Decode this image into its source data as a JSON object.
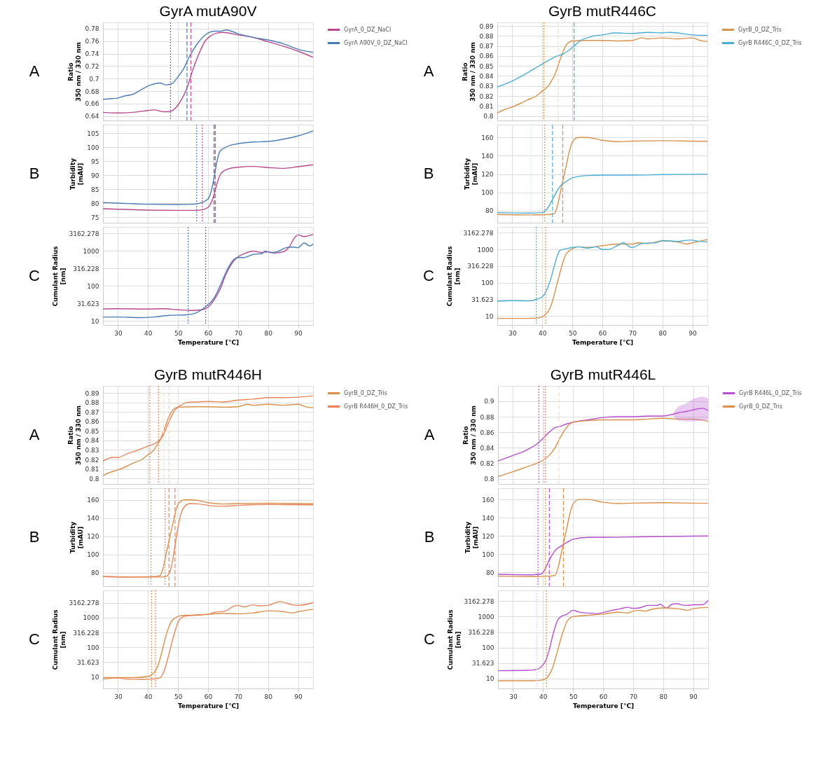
{
  "chart_data": [
    {
      "type": "line",
      "title": "GyrA mutA90V",
      "annotations": [
        "A"
      ],
      "ylabel": "Ratio\n350 nm / 330 nm",
      "xlim": [
        25,
        95
      ],
      "xticks": [
        30,
        40,
        50,
        60,
        70,
        80,
        90
      ],
      "ylim": [
        0.633,
        0.79
      ],
      "yticks": [
        0.64,
        0.66,
        0.68,
        0.7,
        0.72,
        0.74,
        0.76,
        0.78
      ],
      "grid": true,
      "legend": "right",
      "tick_labels": "y",
      "line_style": "solid",
      "series": [
        {
          "name": "GyrA_0_DZ_NaCl",
          "color": "#b8478e",
          "x": [
            25,
            30,
            35,
            40,
            42,
            45,
            47,
            49,
            51,
            53,
            55,
            57,
            59,
            61,
            63,
            65,
            70,
            75,
            80,
            85,
            90,
            95
          ],
          "values": [
            0.646,
            0.645,
            0.646,
            0.649,
            0.65,
            0.647,
            0.647,
            0.652,
            0.665,
            0.685,
            0.715,
            0.74,
            0.76,
            0.769,
            0.773,
            0.774,
            0.77,
            0.766,
            0.759,
            0.752,
            0.744,
            0.734
          ]
        },
        {
          "name": "GyrA A90V_0_DZ_NaCl",
          "color": "#4a7db5",
          "x": [
            25,
            28,
            30,
            32,
            35,
            38,
            41,
            44,
            46,
            48,
            50,
            52,
            54,
            56,
            58,
            60,
            62,
            64,
            66,
            70,
            75,
            80,
            85,
            90,
            95
          ],
          "values": [
            0.667,
            0.668,
            0.669,
            0.672,
            0.675,
            0.683,
            0.69,
            0.693,
            0.69,
            0.692,
            0.703,
            0.717,
            0.737,
            0.753,
            0.765,
            0.773,
            0.776,
            0.776,
            0.778,
            0.772,
            0.766,
            0.762,
            0.756,
            0.747,
            0.742
          ]
        }
      ],
      "ref_lines": [
        {
          "axis": "x",
          "value": 47.5,
          "color": "#b8478e",
          "line_style": "dotted"
        },
        {
          "axis": "x",
          "value": 53,
          "color": "#4a7db5",
          "line_style": "dashed"
        },
        {
          "axis": "x",
          "value": 54.3,
          "color": "#b8478e",
          "line_style": "dashed"
        }
      ]
    },
    {
      "type": "line",
      "annotations": [
        "B"
      ],
      "ylabel": "Turbidity\n[mAU]",
      "xlim": [
        25,
        95
      ],
      "xticks": [
        30,
        40,
        50,
        60,
        70,
        80,
        90
      ],
      "ylim": [
        73,
        108
      ],
      "yticks": [
        75,
        80,
        85,
        90,
        95,
        100,
        105
      ],
      "grid": true,
      "tick_labels": "y",
      "line_style": "solid",
      "series": [
        {
          "color": "#b8478e",
          "x": [
            25,
            30,
            40,
            50,
            56,
            58,
            60,
            61,
            62,
            63,
            64,
            65,
            67,
            70,
            75,
            80,
            85,
            90,
            95
          ],
          "values": [
            78,
            77.8,
            77.5,
            77.4,
            77.4,
            77.6,
            78.5,
            80,
            83,
            87,
            90,
            91.3,
            92.3,
            92.8,
            93.1,
            92.7,
            92.4,
            93,
            93.7
          ]
        },
        {
          "color": "#4a7db5",
          "x": [
            25,
            30,
            40,
            50,
            55,
            58,
            60,
            61,
            62,
            63,
            64,
            66,
            70,
            75,
            80,
            85,
            90,
            95
          ],
          "values": [
            80.2,
            80,
            79.6,
            79.5,
            79.6,
            80.2,
            81.5,
            84,
            89,
            95,
            98.5,
            100,
            101.2,
            101.8,
            102,
            102.8,
            104,
            105.8
          ]
        }
      ],
      "ref_lines": [
        {
          "axis": "x",
          "value": 56.2,
          "color": "#4a7db5",
          "line_style": "dotted"
        },
        {
          "axis": "x",
          "value": 58.1,
          "color": "#b8478e",
          "line_style": "dotted"
        },
        {
          "axis": "x",
          "value": 62,
          "color": "#4a7db5",
          "line_style": "dashed"
        },
        {
          "axis": "x",
          "value": 62.4,
          "color": "#b8478e",
          "line_style": "dashed"
        }
      ]
    },
    {
      "type": "line",
      "annotations": [
        "C"
      ],
      "ylabel": "Cumulant Radius\n[nm]",
      "xlabel": "Temperature [°C]",
      "xlim": [
        25,
        95
      ],
      "xticks": [
        30,
        40,
        50,
        60,
        70,
        80,
        90
      ],
      "ylim": [
        7.7,
        4900
      ],
      "yticks": [
        10,
        31.623,
        100,
        316.228,
        1000,
        3162.278
      ],
      "log": "y",
      "grid": true,
      "line_style": "solid",
      "series": [
        {
          "color": "#b8478e",
          "x": [
            25,
            30,
            40,
            45,
            50,
            55,
            58,
            60,
            62,
            64,
            66,
            68,
            70,
            73,
            75,
            78,
            80,
            82,
            85,
            87,
            89,
            90,
            92,
            95
          ],
          "values": [
            22,
            22.5,
            22,
            22.5,
            21,
            20,
            21,
            25,
            40,
            80,
            220,
            450,
            680,
            900,
            1000,
            900,
            950,
            880,
            950,
            1300,
            2500,
            2900,
            2600,
            3000
          ]
        },
        {
          "color": "#4a7db5",
          "x": [
            25,
            30,
            37,
            42,
            47,
            53,
            56,
            59,
            62,
            64,
            66,
            68,
            70,
            72,
            75,
            78,
            79,
            81,
            83,
            86,
            88,
            90,
            92,
            94,
            95
          ],
          "values": [
            13,
            13,
            12.5,
            13,
            14.5,
            15,
            17,
            25,
            45,
            100,
            250,
            500,
            650,
            650,
            800,
            850,
            1000,
            900,
            950,
            1250,
            1300,
            1250,
            1700,
            1400,
            1600
          ]
        }
      ],
      "ref_lines": [
        {
          "axis": "x",
          "value": 53.4,
          "color": "#4a7db5",
          "line_style": "dotted"
        },
        {
          "axis": "x",
          "value": 59.2,
          "color": "#b8478e",
          "line_style": "dotted"
        }
      ]
    },
    {
      "type": "line",
      "title": "GyrB mutR446C",
      "annotations": [
        "A"
      ],
      "ylabel": "Ratio\n350 nm / 330 nm",
      "xlim": [
        25,
        95
      ],
      "xticks": [
        30,
        40,
        50,
        60,
        70,
        80,
        90
      ],
      "ylim": [
        0.7955,
        0.8935
      ],
      "yticks": [
        0.8,
        0.81,
        0.82,
        0.83,
        0.84,
        0.85,
        0.86,
        0.87,
        0.88,
        0.89
      ],
      "grid": true,
      "legend": "right",
      "tick_labels": "y",
      "line_style": "solid",
      "series": [
        {
          "name": "GyrB_0_DZ_Tris",
          "color": "#d9904a",
          "x": [
            25,
            27,
            30,
            33,
            35,
            38,
            40,
            42,
            43,
            44,
            45,
            46,
            47,
            48,
            49,
            50,
            55,
            60,
            65,
            70,
            73,
            75,
            80,
            85,
            90,
            93,
            95
          ],
          "values": [
            0.803,
            0.806,
            0.809,
            0.813,
            0.816,
            0.82,
            0.825,
            0.83,
            0.835,
            0.84,
            0.848,
            0.857,
            0.865,
            0.871,
            0.874,
            0.875,
            0.8755,
            0.8755,
            0.875,
            0.8755,
            0.878,
            0.877,
            0.878,
            0.877,
            0.878,
            0.875,
            0.8745
          ]
        },
        {
          "name": "GyrB R446C_0_DZ_Tris",
          "color": "#4aaed4",
          "x": [
            25,
            30,
            35,
            40,
            45,
            47,
            49,
            51,
            53,
            55,
            57,
            60,
            64,
            70,
            75,
            80,
            82,
            85,
            90,
            95
          ],
          "values": [
            0.829,
            0.835,
            0.843,
            0.852,
            0.86,
            0.862,
            0.866,
            0.871,
            0.876,
            0.878,
            0.88,
            0.881,
            0.883,
            0.8825,
            0.8835,
            0.883,
            0.8835,
            0.883,
            0.881,
            0.8805
          ]
        }
      ],
      "ref_lines": [
        {
          "axis": "x",
          "value": 40.5,
          "color": "#d9904a",
          "line_style": "dotted"
        },
        {
          "axis": "x",
          "value": 45.3,
          "color": "#f5dcc5",
          "line_style": "dashed"
        },
        {
          "axis": "x",
          "value": 50.6,
          "color": "#4aaed4",
          "line_style": "dashed"
        }
      ]
    },
    {
      "type": "line",
      "annotations": [
        "B"
      ],
      "ylabel": "Turbidity\n[mAU]",
      "xlim": [
        25,
        95
      ],
      "xticks": [
        30,
        40,
        50,
        60,
        70,
        80,
        90
      ],
      "ylim": [
        67,
        174
      ],
      "yticks": [
        80,
        100,
        120,
        140,
        160
      ],
      "grid": true,
      "tick_labels": "y",
      "line_style": "solid",
      "series": [
        {
          "color": "#d9904a",
          "x": [
            25,
            35,
            42,
            44,
            45,
            46,
            47,
            48,
            49,
            50,
            52,
            55,
            60,
            65,
            70,
            80,
            90,
            95
          ],
          "values": [
            76,
            75.5,
            76,
            77,
            85,
            100,
            115,
            130,
            145,
            155,
            160,
            160,
            157,
            155.5,
            156,
            156.5,
            156,
            155.8
          ]
        },
        {
          "color": "#4aaed4",
          "x": [
            25,
            35,
            40,
            41,
            42,
            43,
            44,
            45,
            46,
            48,
            50,
            55,
            60,
            70,
            80,
            95
          ],
          "values": [
            78,
            77.5,
            78,
            80,
            84,
            90,
            96,
            102,
            107,
            112,
            116,
            118.5,
            119,
            119,
            119.5,
            120
          ]
        }
      ],
      "ref_lines": [
        {
          "axis": "x",
          "value": 36.2,
          "color": "#cfe9f3",
          "line_style": "dotted"
        },
        {
          "axis": "x",
          "value": 40.8,
          "color": "#d9904a",
          "line_style": "dotted"
        },
        {
          "axis": "x",
          "value": 43.4,
          "color": "#4aaed4",
          "line_style": "dashed"
        },
        {
          "axis": "x",
          "value": 46.8,
          "color": "#d9904a",
          "line_style": "dashed"
        }
      ]
    },
    {
      "type": "line",
      "annotations": [
        "C"
      ],
      "ylabel": "Cumulant Radius\n[nm]",
      "xlabel": "Temperature [°C]",
      "xlim": [
        25,
        95
      ],
      "xticks": [
        30,
        40,
        50,
        60,
        70,
        80,
        90
      ],
      "ylim": [
        5.4,
        4750
      ],
      "yticks": [
        10,
        31.623,
        100,
        316.228,
        1000,
        3162.278
      ],
      "log": "y",
      "grid": true,
      "line_style": "solid",
      "series": [
        {
          "color": "#d9904a",
          "x": [
            25,
            35,
            38,
            40,
            41,
            42,
            43,
            44,
            45,
            46,
            47,
            48,
            50,
            52,
            55,
            60,
            65,
            70,
            72,
            75,
            80,
            85,
            88,
            90,
            95
          ],
          "values": [
            8.5,
            8.5,
            8.7,
            9.5,
            11,
            14,
            22,
            45,
            100,
            220,
            450,
            750,
            1050,
            1200,
            1150,
            1300,
            1450,
            1450,
            1600,
            1500,
            1800,
            1700,
            1450,
            1600,
            2000
          ]
        },
        {
          "color": "#4aaed4",
          "x": [
            25,
            30,
            36,
            38,
            40,
            41,
            42,
            43,
            44,
            45,
            46,
            48,
            50,
            52,
            55,
            58,
            60,
            62,
            65,
            67,
            69,
            70,
            73,
            75,
            78,
            80,
            85,
            89,
            90,
            92,
            95
          ],
          "values": [
            28,
            29,
            28.5,
            32,
            38,
            50,
            80,
            150,
            320,
            650,
            950,
            1050,
            1150,
            1200,
            1100,
            1200,
            1000,
            1000,
            1300,
            1600,
            1200,
            1150,
            1500,
            1550,
            1600,
            1850,
            1750,
            1900,
            1900,
            1750,
            1700
          ]
        }
      ],
      "ref_lines": [
        {
          "axis": "x",
          "value": 38,
          "color": "#4aaed4",
          "line_style": "dotted"
        },
        {
          "axis": "x",
          "value": 41.1,
          "color": "#d9904a",
          "line_style": "dotted"
        }
      ]
    },
    {
      "type": "line",
      "title": "GyrB mutR446H",
      "annotations": [
        "A"
      ],
      "ylabel": "Ratio\n350 nm / 330 nm",
      "xlim": [
        25,
        95
      ],
      "xticks": [
        30,
        40,
        50,
        60,
        70,
        80,
        90
      ],
      "ylim": [
        0.7942,
        0.8974
      ],
      "yticks": [
        0.8,
        0.81,
        0.82,
        0.83,
        0.84,
        0.85,
        0.86,
        0.87,
        0.88,
        0.89
      ],
      "grid": true,
      "legend": "right",
      "tick_labels": "y",
      "line_style": "solid",
      "series": [
        {
          "name": "GyrB_0_DZ_Tris",
          "color": "#d9904a",
          "x": [
            25,
            27,
            30,
            33,
            35,
            38,
            40,
            42,
            43,
            44,
            45,
            46,
            47,
            48,
            49,
            50,
            55,
            60,
            65,
            70,
            73,
            75,
            80,
            85,
            90,
            93,
            95
          ],
          "values": [
            0.803,
            0.806,
            0.809,
            0.813,
            0.816,
            0.82,
            0.825,
            0.83,
            0.835,
            0.84,
            0.848,
            0.857,
            0.865,
            0.871,
            0.874,
            0.875,
            0.8755,
            0.8755,
            0.875,
            0.8755,
            0.878,
            0.877,
            0.878,
            0.877,
            0.878,
            0.875,
            0.8745
          ]
        },
        {
          "name": "GyrB R446H_0_DZ_Tris",
          "color": "#e8845a",
          "x": [
            25,
            28,
            30,
            33,
            36,
            40,
            43,
            45,
            47,
            49,
            51,
            53,
            56,
            60,
            65,
            70,
            75,
            80,
            85,
            90,
            95
          ],
          "values": [
            0.818,
            0.822,
            0.822,
            0.826,
            0.829,
            0.834,
            0.838,
            0.845,
            0.86,
            0.872,
            0.877,
            0.88,
            0.8805,
            0.881,
            0.8805,
            0.8825,
            0.8835,
            0.885,
            0.885,
            0.8855,
            0.887
          ]
        }
      ],
      "ref_lines": [
        {
          "axis": "x",
          "value": 40.6,
          "color": "#e8845a",
          "line_style": "dotted"
        },
        {
          "axis": "x",
          "value": 43.5,
          "color": "#e8845a",
          "line_style": "dotted"
        },
        {
          "axis": "x",
          "value": 45.2,
          "color": "#f6e3cf",
          "line_style": "dashed"
        },
        {
          "axis": "x",
          "value": 47,
          "color": "#f6d3c3",
          "line_style": "dashed"
        }
      ]
    },
    {
      "type": "line",
      "annotations": [
        "B"
      ],
      "ylabel": "Turbidity\n[mAU]",
      "xlim": [
        25,
        95
      ],
      "xticks": [
        30,
        40,
        50,
        60,
        70,
        80,
        90
      ],
      "ylim": [
        65.4,
        172.9
      ],
      "yticks": [
        80,
        100,
        120,
        140,
        160
      ],
      "grid": true,
      "tick_labels": "y",
      "line_style": "solid",
      "series": [
        {
          "color": "#d9904a",
          "x": [
            25,
            35,
            42,
            44,
            45,
            46,
            47,
            48,
            49,
            50,
            52,
            55,
            60,
            65,
            70,
            80,
            90,
            95
          ],
          "values": [
            76,
            75.5,
            76,
            77,
            85,
            100,
            115,
            130,
            145,
            155,
            160,
            160,
            157,
            155.5,
            156,
            156.5,
            156,
            155.8
          ]
        },
        {
          "color": "#e8845a",
          "x": [
            25,
            35,
            45,
            46,
            47,
            48,
            49,
            50,
            51,
            52,
            54,
            57,
            60,
            65,
            70,
            80,
            95
          ],
          "values": [
            76,
            75.5,
            75.5,
            76,
            79,
            90,
            110,
            130,
            145,
            152,
            156,
            155.5,
            154,
            153,
            154,
            155,
            154.5
          ]
        }
      ],
      "ref_lines": [
        {
          "axis": "x",
          "value": 41,
          "color": "#e8845a",
          "line_style": "dotted"
        },
        {
          "axis": "x",
          "value": 45.7,
          "color": "#e8845a",
          "line_style": "dotted"
        },
        {
          "axis": "x",
          "value": 47,
          "color": "#d9904a",
          "line_style": "dashed"
        },
        {
          "axis": "x",
          "value": 49,
          "color": "#e8845a",
          "line_style": "dashed"
        }
      ]
    },
    {
      "type": "line",
      "annotations": [
        "C"
      ],
      "ylabel": "Cumulant Radius\n[nm]",
      "xlabel": "Temperature [°C]",
      "xlim": [
        25,
        95
      ],
      "xticks": [
        30,
        40,
        50,
        60,
        70,
        80,
        90
      ],
      "ylim": [
        4.1,
        8300
      ],
      "yticks": [
        10,
        31.623,
        100,
        316.228,
        1000,
        3162.278
      ],
      "log": "y",
      "grid": true,
      "line_style": "solid",
      "series": [
        {
          "color": "#d9904a",
          "x": [
            25,
            35,
            40,
            41,
            42,
            43,
            44,
            45,
            46,
            47,
            48,
            50,
            52,
            55,
            60,
            65,
            70,
            75,
            80,
            85,
            88,
            90,
            95
          ],
          "values": [
            9.5,
            9.5,
            10.5,
            11.5,
            14,
            20,
            40,
            100,
            250,
            500,
            800,
            1100,
            1200,
            1200,
            1300,
            1400,
            1350,
            1450,
            1700,
            1600,
            1450,
            1600,
            1900
          ]
        },
        {
          "color": "#e8845a",
          "x": [
            25,
            30,
            33,
            38,
            42,
            44,
            45,
            46,
            47,
            48,
            49,
            50,
            52,
            55,
            57,
            60,
            62,
            66,
            68,
            70,
            72,
            75,
            77,
            80,
            84,
            88,
            90,
            95
          ],
          "values": [
            8.5,
            9.2,
            8.5,
            8.3,
            8.6,
            9.5,
            13,
            25,
            60,
            150,
            350,
            700,
            1100,
            1200,
            1250,
            1300,
            1500,
            1700,
            2300,
            2600,
            2300,
            2700,
            2500,
            2600,
            3500,
            2700,
            2600,
            3200
          ]
        }
      ],
      "ref_lines": [
        {
          "axis": "x",
          "value": 41.2,
          "color": "#d9904a",
          "line_style": "dotted"
        },
        {
          "axis": "x",
          "value": 42.5,
          "color": "#e8845a",
          "line_style": "dotted"
        }
      ]
    },
    {
      "type": "line",
      "title": "GyrB mutR446L",
      "annotations": [
        "A"
      ],
      "ylabel": "Ratio\n350 nm / 330 nm",
      "xlim": [
        25,
        95
      ],
      "xticks": [
        30,
        40,
        50,
        60,
        70,
        80,
        90
      ],
      "ylim": [
        0.7933,
        0.9198
      ],
      "yticks": [
        0.8,
        0.82,
        0.84,
        0.86,
        0.88,
        0.9
      ],
      "grid": true,
      "legend": "right",
      "tick_labels": "y",
      "line_style": "solid",
      "series": [
        {
          "name": "GyrB R446L_0_DZ_Tris",
          "color": "#b64fcf",
          "x": [
            25,
            30,
            35,
            38,
            40,
            42,
            44,
            46,
            48,
            50,
            55,
            60,
            65,
            70,
            75,
            80,
            83,
            85,
            88,
            90,
            93,
            95
          ],
          "values": [
            0.823,
            0.83,
            0.838,
            0.845,
            0.852,
            0.86,
            0.866,
            0.868,
            0.871,
            0.873,
            0.876,
            0.879,
            0.88,
            0.88,
            0.881,
            0.881,
            0.883,
            0.885,
            0.887,
            0.889,
            0.891,
            0.888
          ],
          "lower": [
            null,
            null,
            null,
            null,
            null,
            null,
            null,
            null,
            null,
            null,
            null,
            null,
            null,
            null,
            null,
            null,
            0.883,
            0.875,
            0.874,
            0.874,
            0.875,
            0.876
          ],
          "upper": [
            null,
            null,
            null,
            null,
            null,
            null,
            null,
            null,
            null,
            null,
            null,
            null,
            null,
            null,
            null,
            null,
            0.883,
            0.893,
            0.898,
            0.903,
            0.906,
            0.904
          ]
        },
        {
          "name": "GyrB_0_DZ_Tris",
          "color": "#d9904a",
          "x": [
            25,
            30,
            35,
            38,
            40,
            42,
            44,
            46,
            48,
            50,
            55,
            60,
            70,
            75,
            80,
            85,
            90,
            95
          ],
          "values": [
            0.803,
            0.809,
            0.816,
            0.82,
            0.824,
            0.83,
            0.84,
            0.855,
            0.867,
            0.873,
            0.875,
            0.876,
            0.876,
            0.877,
            0.878,
            0.877,
            0.877,
            0.874
          ]
        }
      ],
      "ref_lines": [
        {
          "axis": "x",
          "value": 38.6,
          "color": "#b64fcf",
          "line_style": "dotted"
        },
        {
          "axis": "x",
          "value": 40.3,
          "color": "#e7c9ef",
          "line_style": "dotted"
        },
        {
          "axis": "x",
          "value": 40.8,
          "color": "#d9904a",
          "line_style": "dotted"
        },
        {
          "axis": "x",
          "value": 45.3,
          "color": "#f5dcc5",
          "line_style": "dashed"
        }
      ]
    },
    {
      "type": "line",
      "annotations": [
        "B"
      ],
      "ylabel": "Turbidity\n[mAU]",
      "xlim": [
        25,
        95
      ],
      "xticks": [
        30,
        40,
        50,
        60,
        70,
        80,
        90
      ],
      "ylim": [
        65,
        172.4
      ],
      "yticks": [
        80,
        100,
        120,
        140,
        160
      ],
      "grid": true,
      "tick_labels": "y",
      "line_style": "solid",
      "series": [
        {
          "color": "#b64fcf",
          "x": [
            25,
            35,
            39,
            40,
            41,
            42,
            43,
            44,
            46,
            48,
            50,
            55,
            60,
            70,
            80,
            95
          ],
          "values": [
            78,
            77.5,
            78,
            80,
            86,
            93,
            99,
            104,
            109,
            113,
            116.5,
            118.5,
            118.5,
            119,
            119.5,
            120
          ]
        },
        {
          "color": "#d9904a",
          "x": [
            25,
            35,
            42,
            44,
            45,
            46,
            47,
            48,
            49,
            50,
            52,
            55,
            60,
            65,
            70,
            80,
            90,
            95
          ],
          "values": [
            76,
            75.5,
            76,
            77,
            85,
            100,
            115,
            130,
            145,
            155,
            160,
            160,
            157,
            155.5,
            156,
            156.5,
            156,
            155.8
          ]
        }
      ],
      "ref_lines": [
        {
          "axis": "x",
          "value": 38.3,
          "color": "#b64fcf",
          "line_style": "dotted"
        },
        {
          "axis": "x",
          "value": 40.8,
          "color": "#d9904a",
          "line_style": "dotted"
        },
        {
          "axis": "x",
          "value": 42.1,
          "color": "#b64fcf",
          "line_style": "dashed"
        },
        {
          "axis": "x",
          "value": 46.8,
          "color": "#d9904a",
          "line_style": "dashed"
        }
      ]
    },
    {
      "type": "line",
      "annotations": [
        "C"
      ],
      "ylabel": "Cumulant Radius\n[nm]",
      "xlabel": "Temperature [°C]",
      "xlim": [
        25,
        95
      ],
      "xticks": [
        30,
        40,
        50,
        60,
        70,
        80,
        90
      ],
      "ylim": [
        4.8,
        7000
      ],
      "yticks": [
        10,
        31.623,
        100,
        316.228,
        1000,
        3162.278
      ],
      "log": "y",
      "grid": true,
      "line_style": "solid",
      "series": [
        {
          "color": "#b64fcf",
          "x": [
            25,
            35,
            38,
            40,
            41,
            42,
            43,
            44,
            45,
            46,
            48,
            50,
            52,
            55,
            58,
            60,
            63,
            66,
            68,
            70,
            72,
            75,
            78,
            79,
            81,
            83,
            85,
            86,
            88,
            90,
            93,
            95
          ],
          "values": [
            18,
            18.5,
            20,
            28,
            40,
            80,
            200,
            450,
            800,
            1000,
            1200,
            1600,
            1400,
            1300,
            1250,
            1350,
            1600,
            1800,
            2000,
            1850,
            1900,
            2300,
            2300,
            2500,
            1900,
            2500,
            2600,
            2400,
            2300,
            2400,
            2400,
            3300
          ]
        },
        {
          "color": "#d9904a",
          "x": [
            25,
            35,
            39,
            41,
            42,
            43,
            44,
            45,
            46,
            47,
            48,
            50,
            55,
            60,
            65,
            68,
            70,
            72,
            74,
            76,
            80,
            85,
            88,
            90,
            95
          ],
          "values": [
            8.5,
            8.5,
            8.8,
            10,
            13,
            20,
            40,
            90,
            200,
            400,
            700,
            1000,
            1100,
            1200,
            1400,
            1300,
            1500,
            1600,
            1500,
            1700,
            1900,
            1800,
            1600,
            1800,
            2000
          ]
        }
      ],
      "ref_lines": [
        {
          "axis": "x",
          "value": 38,
          "color": "#e7c9ef",
          "line_style": "dotted"
        },
        {
          "axis": "x",
          "value": 41.1,
          "color": "#d9904a",
          "line_style": "dotted"
        }
      ]
    }
  ]
}
